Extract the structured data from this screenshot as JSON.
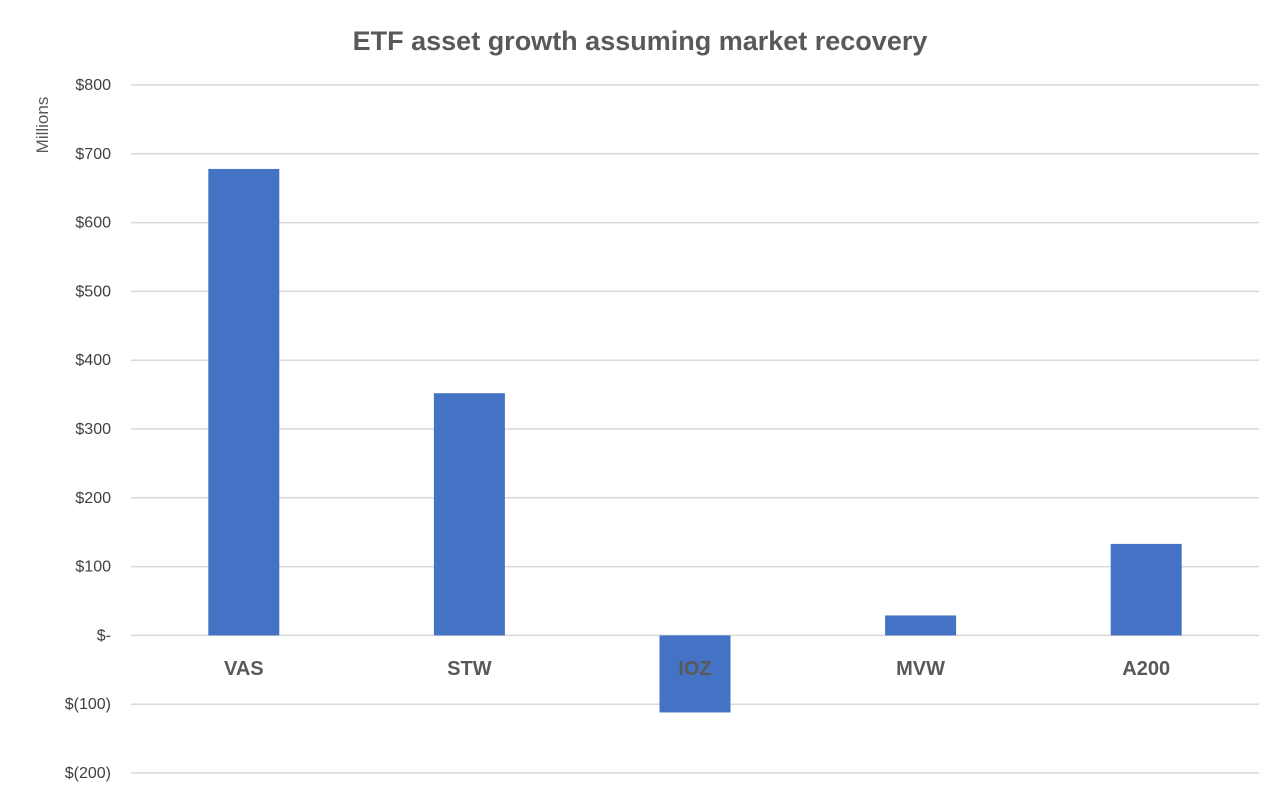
{
  "chart_data": {
    "type": "bar",
    "title": "ETF asset growth assuming market recovery",
    "ylabel": "Millions",
    "xlabel": "",
    "categories": [
      "VAS",
      "STW",
      "IOZ",
      "MVW",
      "A200"
    ],
    "values": [
      678,
      352,
      -112,
      29,
      133
    ],
    "ylim": [
      -200,
      800
    ],
    "yticks": [
      800,
      700,
      600,
      500,
      400,
      300,
      200,
      100,
      0,
      -100,
      -200
    ],
    "ytick_labels": [
      "$800",
      "$700",
      "$600",
      "$500",
      "$400",
      "$300",
      "$200",
      "$100",
      "$-",
      "$(100)",
      "$(200)"
    ],
    "grid": true,
    "legend": "none",
    "bar_color": "#4472C4"
  }
}
